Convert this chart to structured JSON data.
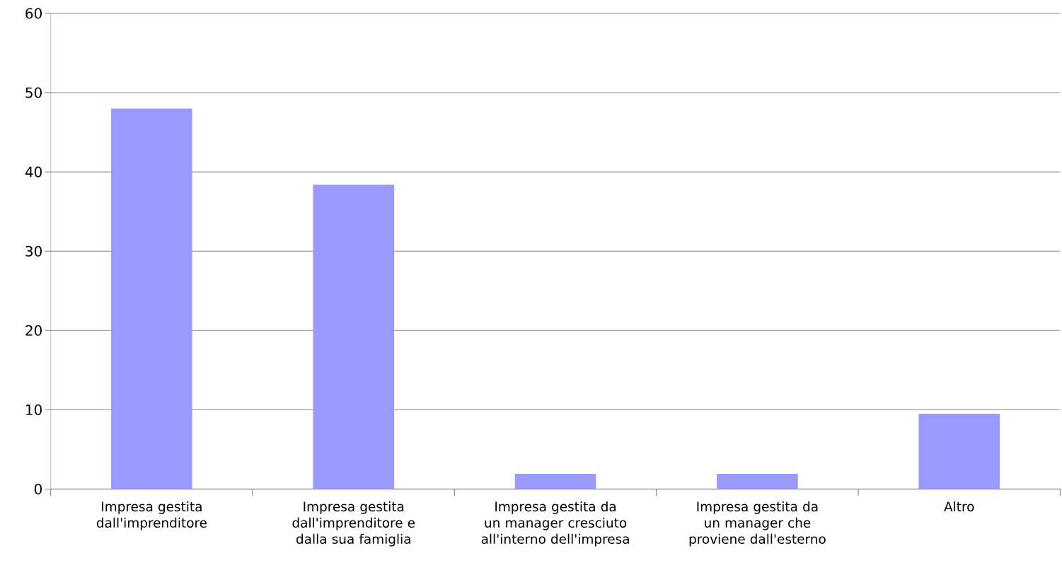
{
  "chart_data": {
    "type": "bar",
    "categories": [
      "Impresa gestita dall'imprenditore",
      "Impresa gestita dall'imprenditore e dalla sua famiglia",
      "Impresa gestita da un manager cresciuto all'interno dell'impresa",
      "Impresa gestita da un manager che proviene dall'esterno",
      "Altro"
    ],
    "values": [
      48.0,
      38.4,
      1.9,
      1.9,
      9.5
    ],
    "color": "#9999ff",
    "ylim": [
      0,
      60
    ],
    "yticks": [
      0,
      10,
      20,
      30,
      40,
      50,
      60
    ],
    "grid": "y",
    "legend": false
  }
}
